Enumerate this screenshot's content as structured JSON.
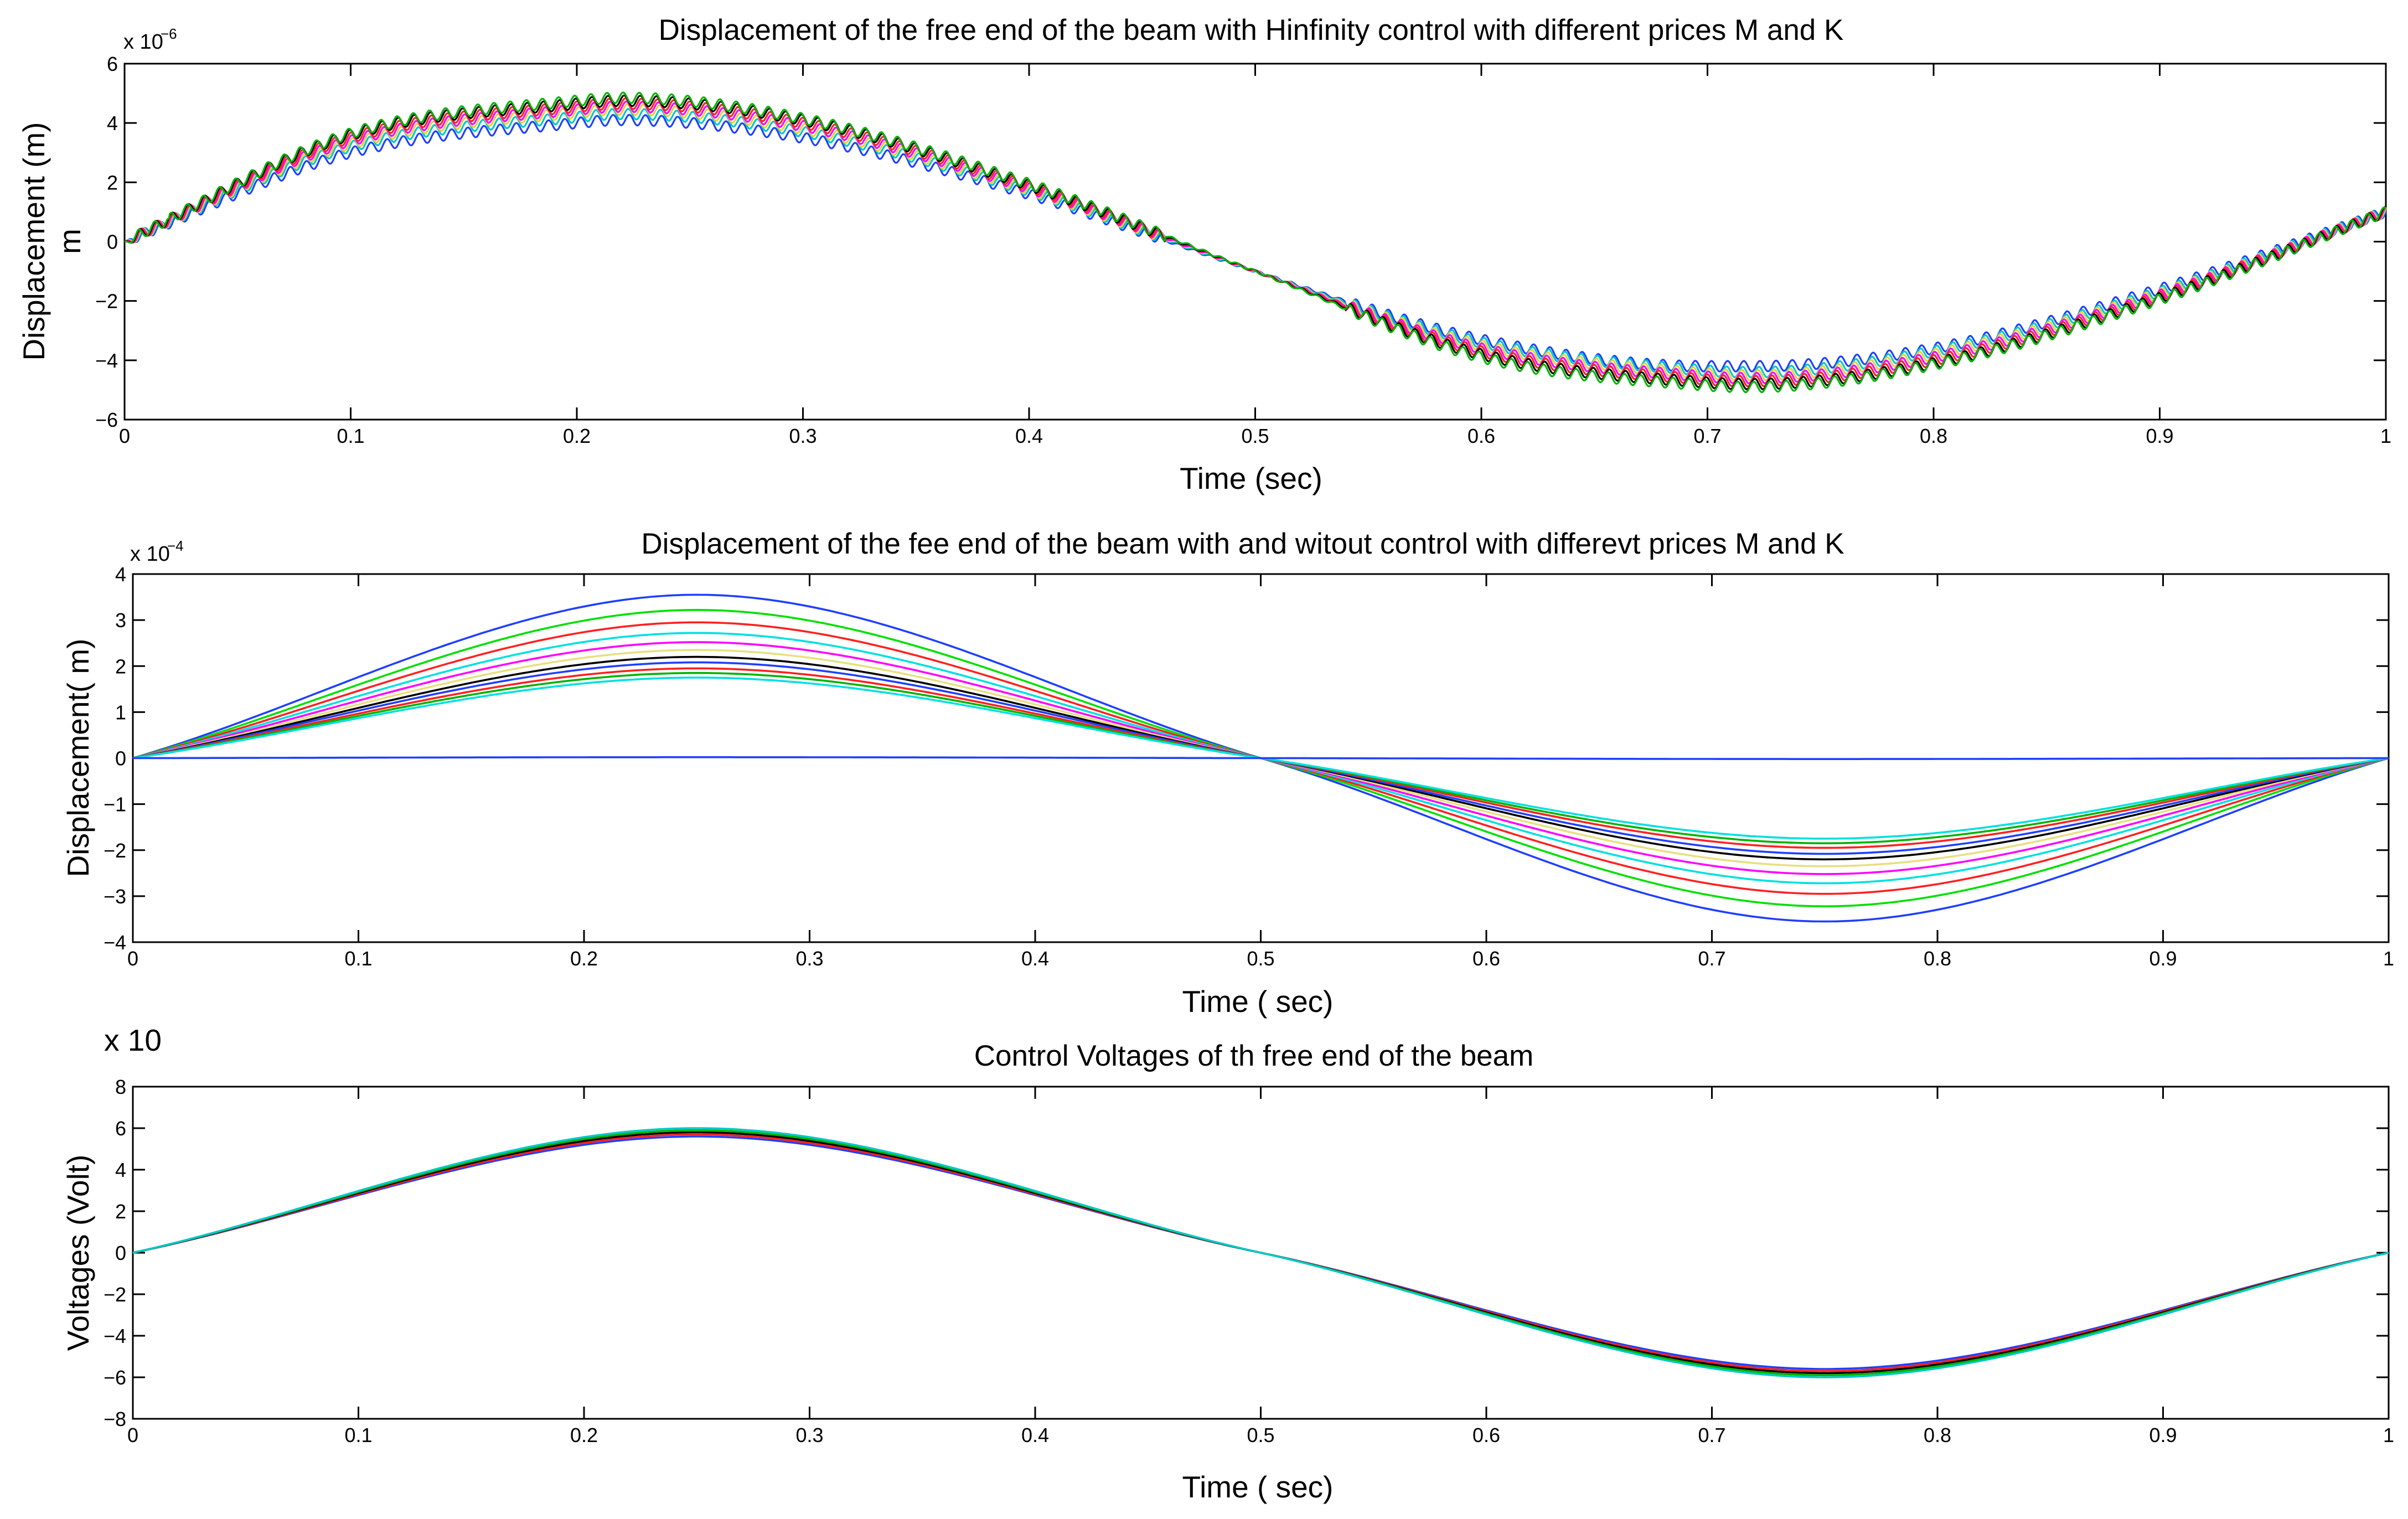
{
  "chart_data": [
    {
      "type": "line",
      "title": "Displacement of the free end of the beam with Hinfinity control with different prices M and K",
      "xlabel": "Time (sec)",
      "ylabel": "Displacement (m)",
      "ylabel2": "m",
      "y_exponent": {
        "base": "x 10",
        "power": "−6"
      },
      "xlim": [
        0,
        1
      ],
      "ylim": [
        -6,
        6
      ],
      "x_ticks": [
        "0",
        "0.1",
        "0.2",
        "0.3",
        "0.4",
        "0.5",
        "0.6",
        "0.7",
        "0.8",
        "0.9",
        "1"
      ],
      "y_ticks": [
        "−6",
        "−4",
        "−2",
        "0",
        "2",
        "4",
        "6"
      ],
      "grid": false,
      "x": [
        0,
        0.1,
        0.2,
        0.22,
        0.3,
        0.4,
        0.5,
        0.6,
        0.7,
        0.72,
        0.8,
        0.9,
        1.0
      ],
      "series": [
        {
          "color": "#1f3fff",
          "values": [
            0,
            3.0,
            4.0,
            4.1,
            3.5,
            1.6,
            -1.0,
            -3.3,
            -4.2,
            -4.2,
            -3.6,
            -1.6,
            1.0
          ]
        },
        {
          "color": "#00c8c8",
          "values": [
            0,
            3.2,
            4.2,
            4.3,
            3.7,
            1.7,
            -1.0,
            -3.4,
            -4.35,
            -4.4,
            -3.7,
            -1.7,
            1.0
          ]
        },
        {
          "color": "#e6d23c",
          "values": [
            0,
            3.3,
            4.35,
            4.45,
            3.8,
            1.75,
            -1.0,
            -3.5,
            -4.45,
            -4.5,
            -3.8,
            -1.75,
            1.0
          ]
        },
        {
          "color": "#ff00ff",
          "values": [
            0,
            3.4,
            4.45,
            4.55,
            3.9,
            1.8,
            -1.0,
            -3.6,
            -4.55,
            -4.6,
            -3.9,
            -1.8,
            1.0
          ]
        },
        {
          "color": "#ff2020",
          "values": [
            0,
            3.5,
            4.55,
            4.65,
            4.0,
            1.85,
            -1.0,
            -3.7,
            -4.65,
            -4.7,
            -4.0,
            -1.85,
            1.0
          ]
        },
        {
          "color": "#000000",
          "values": [
            0,
            3.6,
            4.65,
            4.75,
            4.1,
            1.9,
            -1.0,
            -3.8,
            -4.75,
            -4.8,
            -4.1,
            -1.9,
            1.0
          ]
        },
        {
          "color": "#00b400",
          "values": [
            0,
            3.65,
            4.75,
            4.85,
            4.15,
            1.95,
            -1.0,
            -3.9,
            -4.85,
            -4.9,
            -4.15,
            -1.95,
            1.0
          ]
        }
      ]
    },
    {
      "type": "line",
      "title": "Displacement of the fee end of the beam with and witout control with differevt prices M and K",
      "xlabel": "Time ( sec)",
      "ylabel": "Displacement( m)",
      "y_exponent": {
        "base": "x 10",
        "power": "−4"
      },
      "xlim": [
        0,
        1
      ],
      "ylim": [
        -4,
        4
      ],
      "x_ticks": [
        "0",
        "0.1",
        "0.2",
        "0.3",
        "0.4",
        "0.5",
        "0.6",
        "0.7",
        "0.8",
        "0.9",
        "1"
      ],
      "y_ticks": [
        "−4",
        "−3",
        "−2",
        "−1",
        "0",
        "1",
        "2",
        "3",
        "4"
      ],
      "grid": false,
      "x": [
        0,
        0.25,
        0.5,
        0.75,
        1.0
      ],
      "series": [
        {
          "color": "#1f3fff",
          "values": [
            0,
            3.55,
            0,
            -3.55,
            0
          ]
        },
        {
          "color": "#00e000",
          "values": [
            0,
            3.22,
            0,
            -3.22,
            0
          ]
        },
        {
          "color": "#ff2020",
          "values": [
            0,
            2.95,
            0,
            -2.95,
            0
          ]
        },
        {
          "color": "#00e0e0",
          "values": [
            0,
            2.72,
            0,
            -2.72,
            0
          ]
        },
        {
          "color": "#ff00ff",
          "values": [
            0,
            2.52,
            0,
            -2.52,
            0
          ]
        },
        {
          "color": "#e6e080",
          "values": [
            0,
            2.35,
            0,
            -2.35,
            0
          ]
        },
        {
          "color": "#000000",
          "values": [
            0,
            2.2,
            0,
            -2.2,
            0
          ]
        },
        {
          "color": "#1f3fff",
          "values": [
            0,
            2.08,
            0,
            -2.08,
            0
          ]
        },
        {
          "color": "#ff2020",
          "values": [
            0,
            1.95,
            0,
            -1.95,
            0
          ]
        },
        {
          "color": "#00b400",
          "values": [
            0,
            1.85,
            0,
            -1.85,
            0
          ]
        },
        {
          "color": "#00e0e0",
          "values": [
            0,
            1.75,
            0,
            -1.75,
            0
          ]
        },
        {
          "color": "#1f3fff",
          "values": [
            0,
            0.02,
            0,
            -0.02,
            0
          ]
        }
      ]
    },
    {
      "type": "line",
      "title": "Control Voltages of th free end of the beam",
      "xlabel": "Time ( sec)",
      "ylabel": "Voltages (Volt)",
      "y_exponent": {
        "base": "x 10",
        "power": ""
      },
      "xlim": [
        0,
        1
      ],
      "ylim": [
        -8,
        8
      ],
      "x_ticks": [
        "0",
        "0.1",
        "0.2",
        "0.3",
        "0.4",
        "0.5",
        "0.6",
        "0.7",
        "0.8",
        "0.9",
        "1"
      ],
      "y_ticks": [
        "−8",
        "−6",
        "−4",
        "−2",
        "0",
        "2",
        "4",
        "6",
        "8"
      ],
      "grid": false,
      "x": [
        0,
        0.25,
        0.5,
        0.75,
        1.0
      ],
      "series": [
        {
          "color": "#1f3fff",
          "values": [
            0,
            5.6,
            0,
            -5.6,
            0
          ]
        },
        {
          "color": "#ff2020",
          "values": [
            0,
            5.7,
            0,
            -5.7,
            0
          ]
        },
        {
          "color": "#000000",
          "values": [
            0,
            5.8,
            0,
            -5.8,
            0
          ]
        },
        {
          "color": "#00b400",
          "values": [
            0,
            5.9,
            0,
            -5.9,
            0
          ]
        },
        {
          "color": "#00c8c8",
          "values": [
            0,
            6.0,
            0,
            -6.0,
            0
          ]
        }
      ]
    }
  ]
}
